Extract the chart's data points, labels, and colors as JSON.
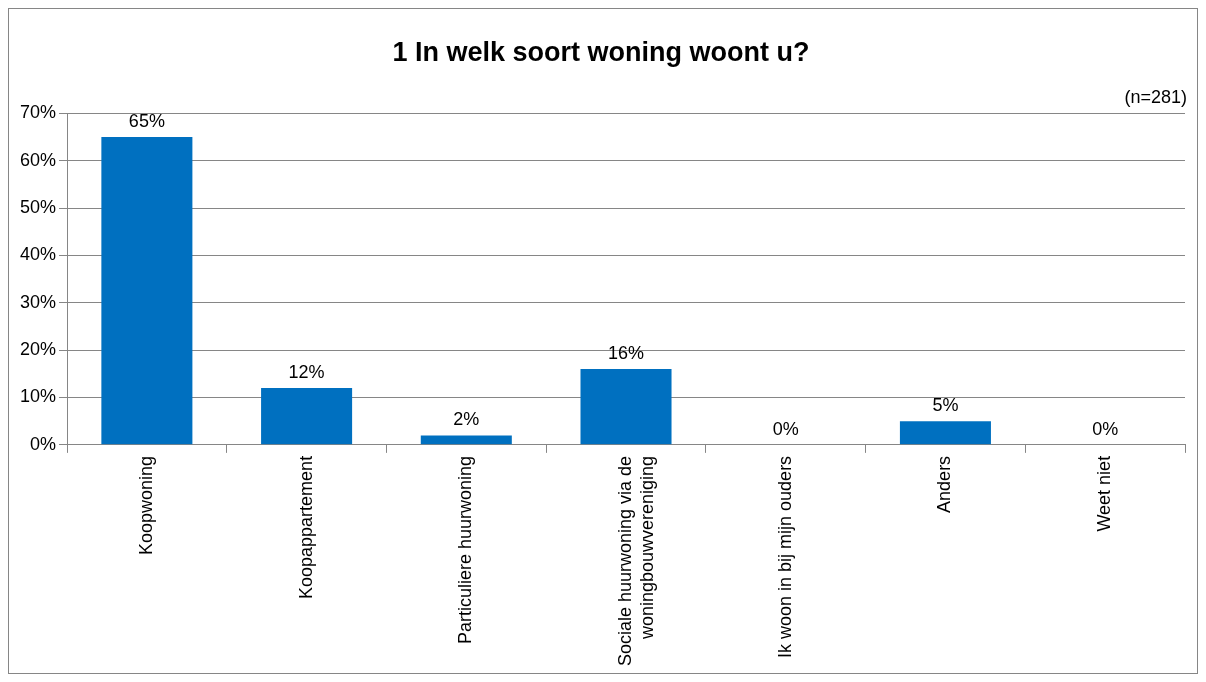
{
  "chart_data": {
    "type": "bar",
    "title": "1 In welk soort woning woont u?",
    "categories": [
      "Koopwoning",
      "Koopappartement",
      "Particuliere huurwoning",
      "Sociale huurwoning via de woningbouwvereniging",
      "Ik woon in bij mijn ouders",
      "Anders",
      "Weet niet"
    ],
    "values": [
      65,
      12,
      2,
      16,
      0,
      5,
      0
    ],
    "color": "#0070c0",
    "ylim": [
      0,
      70
    ],
    "yticks": [
      {
        "value": 0,
        "label": "0%"
      },
      {
        "value": 10,
        "label": "10%"
      },
      {
        "value": 20,
        "label": "20%"
      },
      {
        "value": 30,
        "label": "30%"
      },
      {
        "value": 40,
        "label": "40%"
      },
      {
        "value": 50,
        "label": "50%"
      },
      {
        "value": 60,
        "label": "60%"
      },
      {
        "value": 70,
        "label": "70%"
      }
    ],
    "value_labels": [
      "65%",
      "12%",
      "2%",
      "16%",
      "0%",
      "5%",
      "0%"
    ],
    "annotations": [
      "(n=281)"
    ],
    "grid": "y",
    "legend": false
  }
}
